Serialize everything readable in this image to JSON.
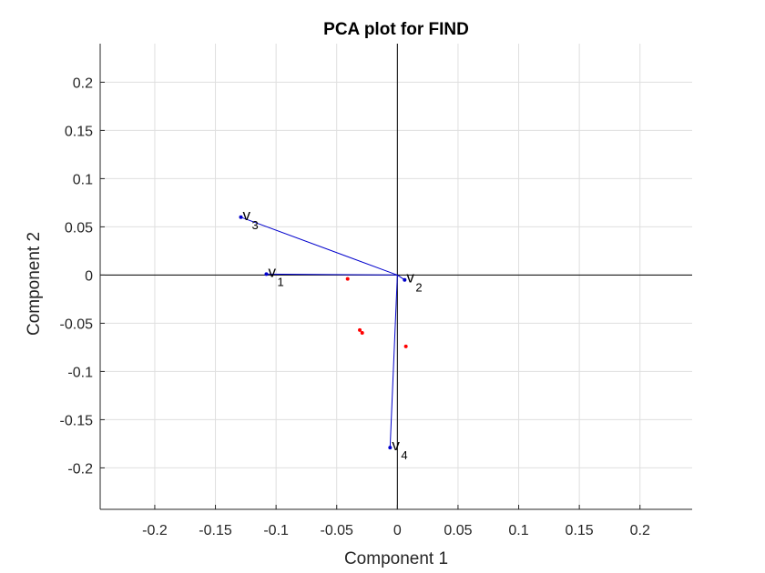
{
  "chart_data": {
    "type": "scatter",
    "title": "PCA plot for FIND",
    "xlabel": "Component 1",
    "ylabel": "Component 2",
    "xlim": [
      -0.245,
      0.243
    ],
    "ylim": [
      -0.243,
      0.24
    ],
    "grid": true,
    "xticks": [
      "-0.2",
      "-0.15",
      "-0.1",
      "-0.05",
      "0",
      "0.05",
      "0.1",
      "0.15",
      "0.2"
    ],
    "xtick_values": [
      -0.2,
      -0.15,
      -0.1,
      -0.05,
      0,
      0.05,
      0.1,
      0.15,
      0.2
    ],
    "yticks": [
      "0.2",
      "0.15",
      "0.1",
      "0.05",
      "0",
      "-0.05",
      "-0.1",
      "-0.15",
      "-0.2"
    ],
    "ytick_values": [
      0.2,
      0.15,
      0.1,
      0.05,
      0,
      -0.05,
      -0.1,
      -0.15,
      -0.2
    ],
    "vectors": [
      {
        "label": "v",
        "sub": "1",
        "x": -0.108,
        "y": 0.001
      },
      {
        "label": "v",
        "sub": "2",
        "x": 0.006,
        "y": -0.005
      },
      {
        "label": "v",
        "sub": "3",
        "x": -0.129,
        "y": 0.06
      },
      {
        "label": "v",
        "sub": "4",
        "x": -0.006,
        "y": -0.179
      }
    ],
    "observations": [
      {
        "x": -0.041,
        "y": -0.004
      },
      {
        "x": -0.031,
        "y": -0.057
      },
      {
        "x": -0.029,
        "y": -0.06
      },
      {
        "x": 0.007,
        "y": -0.074
      }
    ],
    "colors": {
      "vectors": "#0000cc",
      "observations": "#ff0000",
      "grid": "#dfdfdf",
      "axes": "#262626",
      "zero_lines": "#000000"
    }
  }
}
